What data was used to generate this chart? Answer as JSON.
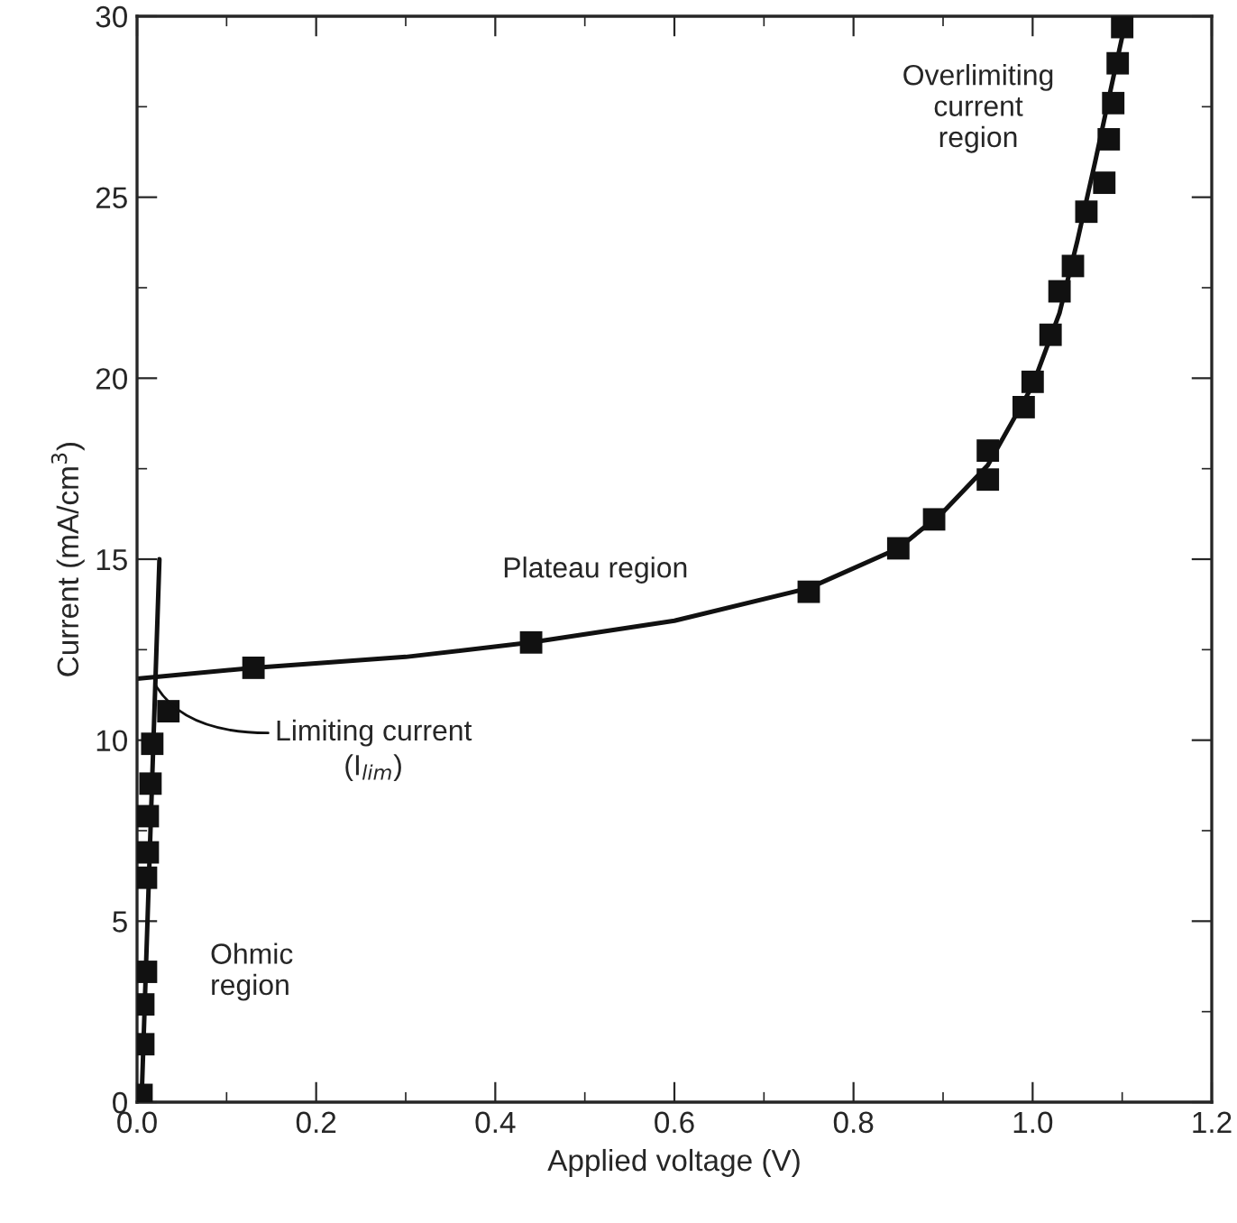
{
  "chart_data": {
    "type": "scatter",
    "xlabel": "Applied voltage (V)",
    "ylabel": "Current (mA/cm$^{3}$)",
    "xlim": [
      0,
      1.2
    ],
    "ylim": [
      0,
      30
    ],
    "xticks": [
      {
        "value": 0,
        "label": "0.0"
      },
      0.2,
      0.4,
      0.6,
      0.8,
      {
        "value": 1,
        "label": "1.0"
      },
      1.2
    ],
    "yticks": [
      0,
      5,
      10,
      15,
      20,
      25,
      30
    ],
    "grid": false,
    "legend": false,
    "series": [
      {
        "color": "#111111",
        "marker": "square",
        "x": [
          0.005,
          0.007,
          0.007,
          0.01,
          0.01,
          0.012,
          0.012,
          0.015,
          0.017,
          0.035,
          0.13,
          0.44,
          0.75,
          0.85,
          0.89,
          0.95,
          0.95,
          0.99,
          1.0,
          1.02,
          1.03,
          1.045,
          1.06,
          1.08,
          1.085,
          1.09,
          1.095,
          1.1
        ],
        "values": [
          0.2,
          1.6,
          2.7,
          3.6,
          6.2,
          6.9,
          7.9,
          8.8,
          9.9,
          10.8,
          12.0,
          12.7,
          14.1,
          15.3,
          16.1,
          17.2,
          18.0,
          19.2,
          19.9,
          21.2,
          22.4,
          23.1,
          24.6,
          25.4,
          26.6,
          27.6,
          28.7,
          29.7
        ]
      },
      {
        "type": "line",
        "color": "#111111",
        "marker": "none",
        "line_style": "solid",
        "x": [
          0,
          0.13,
          0.3,
          0.44,
          0.6,
          0.75,
          0.85,
          0.9,
          0.95,
          1.0,
          1.03,
          1.05,
          1.07,
          1.09,
          1.105
        ],
        "values": [
          11.7,
          12.0,
          12.3,
          12.7,
          13.3,
          14.2,
          15.3,
          16.3,
          17.6,
          19.8,
          21.8,
          23.8,
          26.0,
          28.3,
          30.0
        ]
      },
      {
        "type": "line",
        "color": "#111111",
        "marker": "none",
        "line_style": "solid",
        "x": [
          0.005,
          0.025
        ],
        "values": [
          0,
          15
        ]
      }
    ],
    "annotations": [
      "Overlimiting\ncurrent\nregion",
      "Plateau region",
      {
        "text": "Limiting current\n(I$_{lim}$)",
        "x": 0.02,
        "y": 11.55
      },
      "Ohmic\nregion"
    ]
  }
}
